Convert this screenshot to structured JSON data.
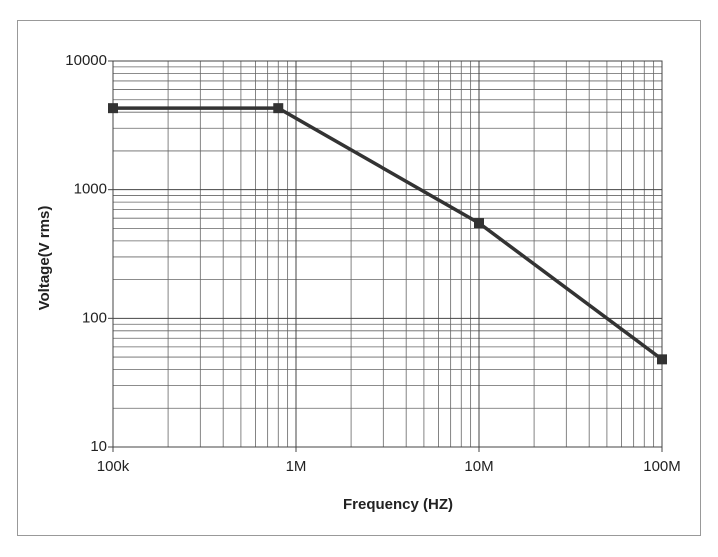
{
  "chart_data": {
    "type": "line",
    "xlabel": "Frequency (HZ)",
    "ylabel": "Voltage(V rms)",
    "x": [
      100000,
      800000,
      10000000,
      100000000
    ],
    "series": [
      {
        "name": "Voltage",
        "color": "#333333",
        "values": [
          4300,
          4300,
          550,
          48
        ]
      }
    ],
    "xlim": [
      100000,
      100000000
    ],
    "xticks": [
      {
        "value": 100000,
        "label": "100k"
      },
      {
        "value": 1000000,
        "label": "1M"
      },
      {
        "value": 10000000,
        "label": "10M"
      },
      {
        "value": 100000000,
        "label": "100M"
      }
    ],
    "ylim": [
      10,
      10000
    ],
    "yticks": [
      10,
      100,
      1000,
      10000
    ],
    "xscale": "log",
    "yscale": "log",
    "grid": true
  }
}
